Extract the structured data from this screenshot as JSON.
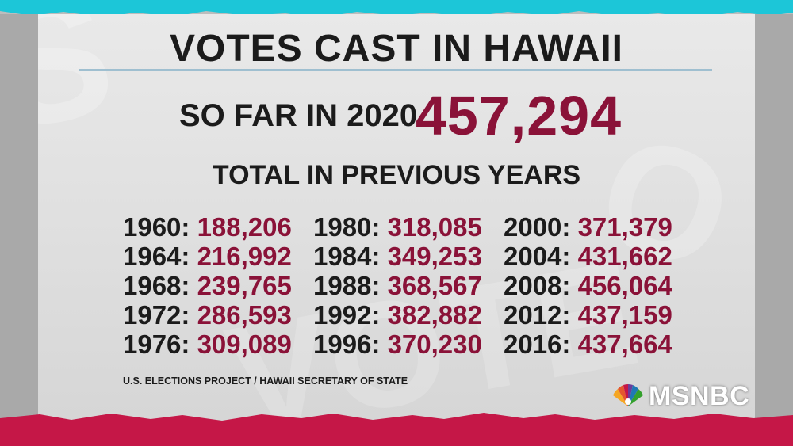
{
  "title": "VOTES CAST IN HAWAII",
  "so_far": {
    "label": "SO FAR IN 2020",
    "value": "457,294"
  },
  "previous_heading": "TOTAL IN PREVIOUS YEARS",
  "columns": [
    [
      {
        "year": "1960:",
        "votes": "188,206"
      },
      {
        "year": "1964:",
        "votes": "216,992"
      },
      {
        "year": "1968:",
        "votes": "239,765"
      },
      {
        "year": "1972:",
        "votes": "286,593"
      },
      {
        "year": "1976:",
        "votes": "309,089"
      }
    ],
    [
      {
        "year": "1980:",
        "votes": "318,085"
      },
      {
        "year": "1984:",
        "votes": "349,253"
      },
      {
        "year": "1988:",
        "votes": "368,567"
      },
      {
        "year": "1992:",
        "votes": "382,882"
      },
      {
        "year": "1996:",
        "votes": "370,230"
      }
    ],
    [
      {
        "year": "2000:",
        "votes": "371,379"
      },
      {
        "year": "2004:",
        "votes": "431,662"
      },
      {
        "year": "2008:",
        "votes": "456,064"
      },
      {
        "year": "2012:",
        "votes": "437,159"
      },
      {
        "year": "2016:",
        "votes": "437,664"
      }
    ]
  ],
  "source": "U.S. ELECTIONS PROJECT / HAWAII SECRETARY OF STATE",
  "logo": {
    "text": "MSNBC",
    "icon": "peacock-icon"
  },
  "colors": {
    "accent": "#8a1238",
    "text": "#1b1b1b",
    "top_band": "#1cc6d8",
    "bottom_band": "#c51747"
  }
}
